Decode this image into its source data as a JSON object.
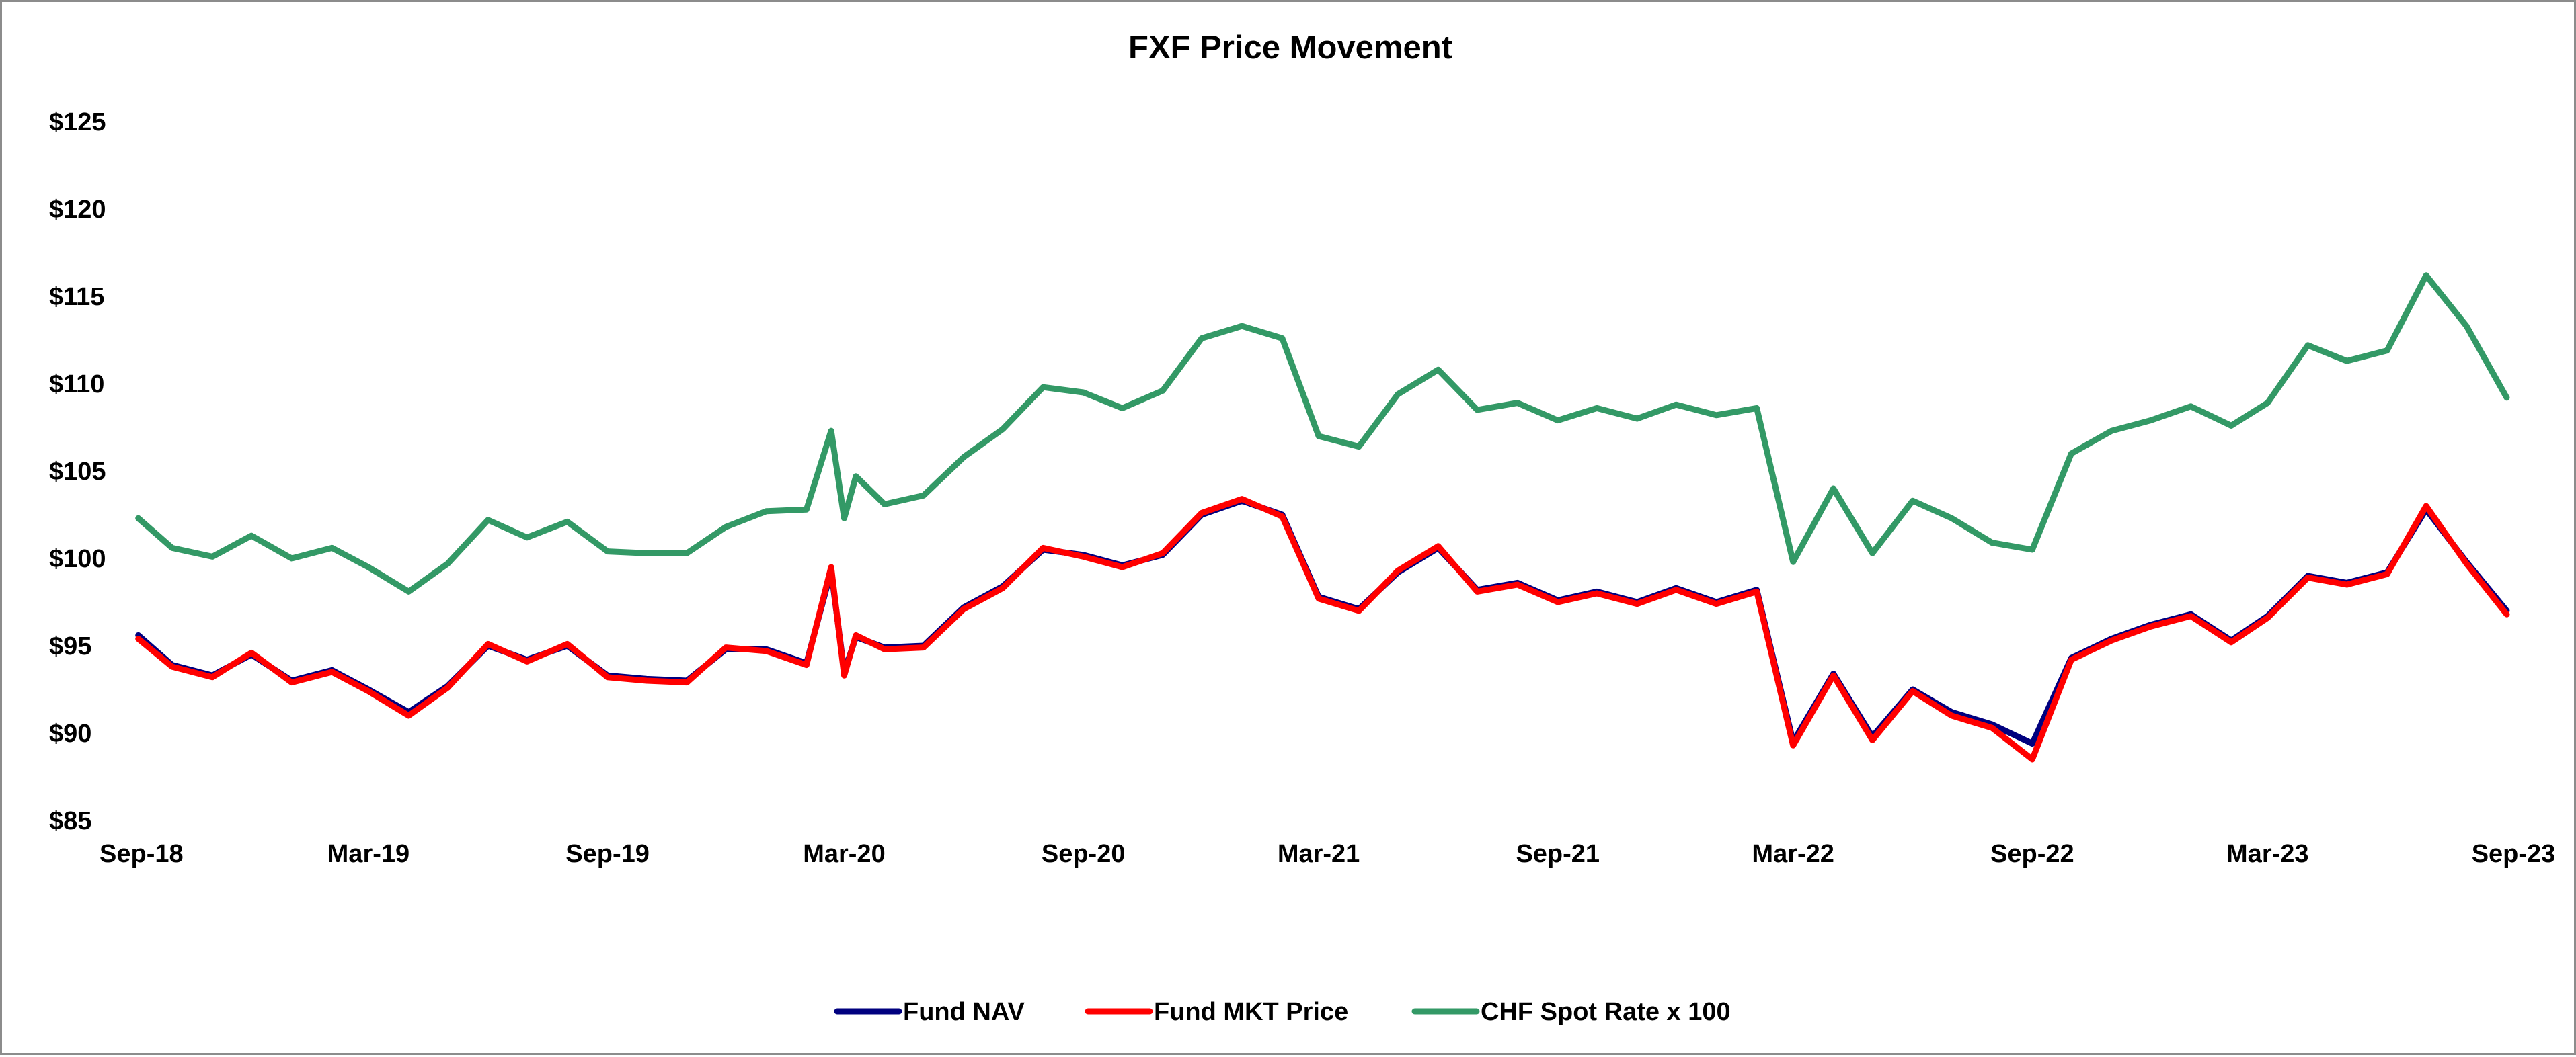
{
  "chart_data": {
    "type": "line",
    "title": "FXF Price Movement",
    "xlabel": "",
    "ylabel": "",
    "x_ticks": [
      "Sep-18",
      "Mar-19",
      "Sep-19",
      "Mar-20",
      "Sep-20",
      "Mar-21",
      "Sep-21",
      "Mar-22",
      "Sep-22",
      "Mar-23",
      "Sep-23"
    ],
    "x_tick_dates": [
      "2018-09-01",
      "2019-03-01",
      "2019-09-01",
      "2020-03-01",
      "2020-09-01",
      "2021-03-01",
      "2021-09-01",
      "2022-03-01",
      "2022-09-01",
      "2023-03-01",
      "2023-09-01"
    ],
    "xlim": [
      "2018-09-01",
      "2023-09-01"
    ],
    "y_ticks": [
      85,
      90,
      95,
      100,
      105,
      110,
      115,
      120,
      125
    ],
    "y_tick_labels": [
      "$85",
      "$90",
      "$95",
      "$100",
      "$105",
      "$110",
      "$115",
      "$120",
      "$125"
    ],
    "ylim": [
      85,
      125
    ],
    "grid": false,
    "legend_position": "bottom",
    "series": [
      {
        "name": "Fund NAV",
        "color": "#00007f",
        "x": [
          "2018-09-05",
          "2018-10-01",
          "2018-11-01",
          "2018-12-01",
          "2019-01-01",
          "2019-02-01",
          "2019-03-01",
          "2019-04-01",
          "2019-05-01",
          "2019-06-01",
          "2019-07-01",
          "2019-08-01",
          "2019-09-01",
          "2019-10-01",
          "2019-11-01",
          "2019-12-01",
          "2020-01-01",
          "2020-02-01",
          "2020-02-20",
          "2020-03-01",
          "2020-03-10",
          "2020-04-01",
          "2020-05-01",
          "2020-06-01",
          "2020-07-01",
          "2020-08-01",
          "2020-09-01",
          "2020-10-01",
          "2020-11-01",
          "2020-12-01",
          "2021-01-01",
          "2021-02-01",
          "2021-03-01",
          "2021-04-01",
          "2021-05-01",
          "2021-06-01",
          "2021-07-01",
          "2021-08-01",
          "2021-09-01",
          "2021-10-01",
          "2021-11-01",
          "2021-12-01",
          "2022-01-01",
          "2022-02-01",
          "2022-03-01",
          "2022-04-01",
          "2022-05-01",
          "2022-06-01",
          "2022-07-01",
          "2022-08-01",
          "2022-09-01",
          "2022-10-01",
          "2022-11-01",
          "2022-12-01",
          "2023-01-01",
          "2023-02-01",
          "2023-03-01",
          "2023-04-01",
          "2023-05-01",
          "2023-06-01",
          "2023-07-01",
          "2023-08-01",
          "2023-09-01"
        ],
        "values": [
          95.6,
          93.9,
          93.3,
          94.5,
          93.0,
          93.6,
          92.5,
          91.2,
          92.7,
          95.0,
          94.2,
          95.0,
          93.3,
          93.1,
          93.0,
          94.8,
          94.8,
          94.0,
          99.3,
          93.5,
          95.5,
          94.9,
          95.0,
          97.2,
          98.4,
          100.5,
          100.2,
          99.6,
          100.2,
          102.5,
          103.3,
          102.5,
          97.8,
          97.1,
          99.2,
          100.6,
          98.2,
          98.6,
          97.6,
          98.1,
          97.5,
          98.3,
          97.5,
          98.2,
          89.5,
          93.4,
          89.8,
          92.5,
          91.2,
          90.5,
          89.4,
          94.3,
          95.4,
          96.2,
          96.8,
          95.3,
          96.7,
          99.0,
          98.6,
          99.2,
          102.8,
          99.8,
          97.0
        ]
      },
      {
        "name": "Fund MKT Price",
        "color": "#ff0000",
        "x": [
          "2018-09-05",
          "2018-10-01",
          "2018-11-01",
          "2018-12-01",
          "2019-01-01",
          "2019-02-01",
          "2019-03-01",
          "2019-04-01",
          "2019-05-01",
          "2019-06-01",
          "2019-07-01",
          "2019-08-01",
          "2019-09-01",
          "2019-10-01",
          "2019-11-01",
          "2019-12-01",
          "2020-01-01",
          "2020-02-01",
          "2020-02-20",
          "2020-03-01",
          "2020-03-10",
          "2020-04-01",
          "2020-05-01",
          "2020-06-01",
          "2020-07-01",
          "2020-08-01",
          "2020-09-01",
          "2020-10-01",
          "2020-11-01",
          "2020-12-01",
          "2021-01-01",
          "2021-02-01",
          "2021-03-01",
          "2021-04-01",
          "2021-05-01",
          "2021-06-01",
          "2021-07-01",
          "2021-08-01",
          "2021-09-01",
          "2021-10-01",
          "2021-11-01",
          "2021-12-01",
          "2022-01-01",
          "2022-02-01",
          "2022-03-01",
          "2022-04-01",
          "2022-05-01",
          "2022-06-01",
          "2022-07-01",
          "2022-08-01",
          "2022-09-01",
          "2022-10-01",
          "2022-11-01",
          "2022-12-01",
          "2023-01-01",
          "2023-02-01",
          "2023-03-01",
          "2023-04-01",
          "2023-05-01",
          "2023-06-01",
          "2023-07-01",
          "2023-08-01",
          "2023-09-01"
        ],
        "values": [
          95.4,
          93.8,
          93.2,
          94.6,
          92.9,
          93.5,
          92.4,
          91.0,
          92.6,
          95.1,
          94.1,
          95.1,
          93.2,
          93.0,
          92.9,
          94.9,
          94.7,
          93.9,
          99.5,
          93.3,
          95.6,
          94.8,
          94.9,
          97.1,
          98.3,
          100.6,
          100.1,
          99.5,
          100.3,
          102.6,
          103.4,
          102.4,
          97.7,
          97.0,
          99.3,
          100.7,
          98.1,
          98.5,
          97.5,
          98.0,
          97.4,
          98.2,
          97.4,
          98.1,
          89.3,
          93.3,
          89.6,
          92.4,
          91.0,
          90.3,
          88.5,
          94.2,
          95.3,
          96.1,
          96.7,
          95.2,
          96.6,
          98.9,
          98.5,
          99.1,
          103.0,
          99.7,
          96.8
        ]
      },
      {
        "name": "CHF Spot Rate x 100",
        "color": "#339966",
        "x": [
          "2018-09-05",
          "2018-10-01",
          "2018-11-01",
          "2018-12-01",
          "2019-01-01",
          "2019-02-01",
          "2019-03-01",
          "2019-04-01",
          "2019-05-01",
          "2019-06-01",
          "2019-07-01",
          "2019-08-01",
          "2019-09-01",
          "2019-10-01",
          "2019-11-01",
          "2019-12-01",
          "2020-01-01",
          "2020-02-01",
          "2020-02-20",
          "2020-03-01",
          "2020-03-10",
          "2020-04-01",
          "2020-05-01",
          "2020-06-01",
          "2020-07-01",
          "2020-08-01",
          "2020-09-01",
          "2020-10-01",
          "2020-11-01",
          "2020-12-01",
          "2021-01-01",
          "2021-02-01",
          "2021-03-01",
          "2021-04-01",
          "2021-05-01",
          "2021-06-01",
          "2021-07-01",
          "2021-08-01",
          "2021-09-01",
          "2021-10-01",
          "2021-11-01",
          "2021-12-01",
          "2022-01-01",
          "2022-02-01",
          "2022-03-01",
          "2022-04-01",
          "2022-05-01",
          "2022-06-01",
          "2022-07-01",
          "2022-08-01",
          "2022-09-01",
          "2022-10-01",
          "2022-11-01",
          "2022-12-01",
          "2023-01-01",
          "2023-02-01",
          "2023-03-01",
          "2023-04-01",
          "2023-05-01",
          "2023-06-01",
          "2023-07-01",
          "2023-08-01",
          "2023-09-01"
        ],
        "values": [
          102.3,
          100.6,
          100.1,
          101.3,
          100.0,
          100.6,
          99.5,
          98.1,
          99.7,
          102.2,
          101.2,
          102.1,
          100.4,
          100.3,
          100.3,
          101.8,
          102.7,
          102.8,
          107.3,
          102.3,
          104.7,
          103.1,
          103.6,
          105.8,
          107.4,
          109.8,
          109.5,
          108.6,
          109.6,
          112.6,
          113.3,
          112.6,
          107.0,
          106.4,
          109.4,
          110.8,
          108.5,
          108.9,
          107.9,
          108.6,
          108.0,
          108.8,
          108.2,
          108.6,
          99.8,
          104.0,
          100.3,
          103.3,
          102.3,
          100.9,
          100.5,
          106.0,
          107.3,
          107.9,
          108.7,
          107.6,
          108.9,
          112.2,
          111.3,
          111.9,
          116.2,
          113.3,
          109.2
        ]
      }
    ]
  }
}
